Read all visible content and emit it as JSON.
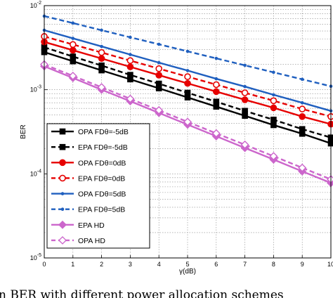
{
  "chart_data": {
    "type": "line",
    "xlabel": "γ(dB)",
    "ylabel": "BER",
    "xlim": [
      0,
      10
    ],
    "ylim": [
      1e-05,
      0.01
    ],
    "yscale": "log",
    "grid": true,
    "legend_position": "lower-left",
    "x_ticks": [
      "0",
      "1",
      "2",
      "3",
      "4",
      "5",
      "6",
      "7",
      "8",
      "9",
      "10"
    ],
    "y_ticks": [
      {
        "base": "10",
        "exp": "-2",
        "value": 0.01
      },
      {
        "base": "10",
        "exp": "-3",
        "value": 0.001
      },
      {
        "base": "10",
        "exp": "-4",
        "value": 0.0001
      },
      {
        "base": "10",
        "exp": "-5",
        "value": 1e-05
      }
    ],
    "x": [
      0,
      1,
      2,
      3,
      4,
      5,
      6,
      7,
      8,
      9,
      10
    ],
    "series": [
      {
        "name": "OPA FDθ=-5dB",
        "color": "#000000",
        "dash": "solid",
        "marker": "square",
        "values": [
          0.0028,
          0.00218,
          0.0017,
          0.00133,
          0.00104,
          0.00081,
          0.00063,
          0.00049,
          0.00038,
          0.0003,
          0.00023
        ]
      },
      {
        "name": "EPA FDθ=-5dB",
        "color": "#000000",
        "dash": "dashed",
        "marker": "square",
        "values": [
          0.0032,
          0.00248,
          0.00194,
          0.0015,
          0.00118,
          0.00092,
          0.00072,
          0.00056,
          0.00044,
          0.00034,
          0.00027
        ]
      },
      {
        "name": "OPA FDθ=0dB",
        "color": "#e60000",
        "dash": "solid",
        "marker": "circle",
        "values": [
          0.0037,
          0.00295,
          0.00235,
          0.00187,
          0.00149,
          0.00119,
          0.00095,
          0.00076,
          0.00061,
          0.00048,
          0.00039
        ]
      },
      {
        "name": "EPA FDθ=0dB",
        "color": "#e60000",
        "dash": "dashed",
        "marker": "circle",
        "values": [
          0.0043,
          0.00345,
          0.00277,
          0.00222,
          0.00178,
          0.00143,
          0.00115,
          0.00092,
          0.00074,
          0.00059,
          0.00048
        ]
      },
      {
        "name": "OPA FDθ=5dB",
        "color": "#1f5fbf",
        "dash": "solid",
        "marker": "dot",
        "values": [
          0.0051,
          0.00408,
          0.00327,
          0.00262,
          0.0021,
          0.00169,
          0.00135,
          0.00109,
          0.00087,
          0.0007,
          0.00056
        ]
      },
      {
        "name": "EPA FDθ=5dB",
        "color": "#1f5fbf",
        "dash": "dashed",
        "marker": "dot",
        "values": [
          0.0075,
          0.0062,
          0.0051,
          0.0042,
          0.00347,
          0.00286,
          0.00236,
          0.00195,
          0.00161,
          0.00133,
          0.0011
        ]
      },
      {
        "name": "EPA HD",
        "color": "#cc66cc",
        "dash": "solid",
        "marker": "diamond",
        "values": [
          0.0019,
          0.00138,
          0.001,
          0.00073,
          0.00053,
          0.000385,
          0.00028,
          0.000203,
          0.000148,
          0.000107,
          7.8e-05
        ]
      },
      {
        "name": "OPA HD",
        "color": "#cc66cc",
        "dash": "dashed",
        "marker": "diamond",
        "values": [
          0.002,
          0.00146,
          0.00107,
          0.00078,
          0.00057,
          0.000415,
          0.000303,
          0.000222,
          0.000162,
          0.000118,
          8.6e-05
        ]
      }
    ]
  },
  "caption": {
    "text": "n BER with different power allocation schemes"
  }
}
